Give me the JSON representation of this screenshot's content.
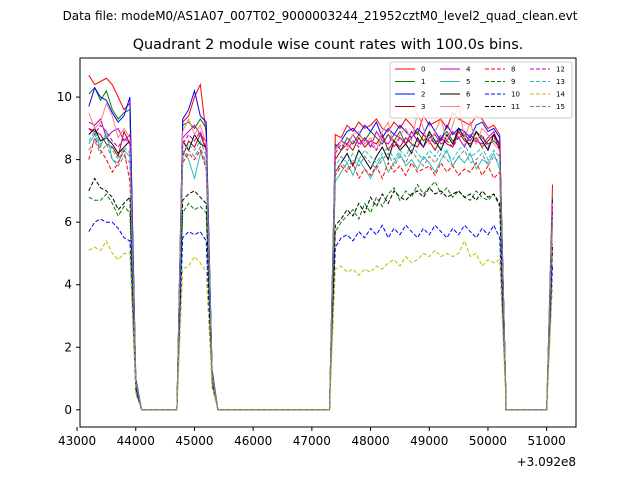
{
  "figure": {
    "suptitle": "Data file: modeM0/AS1A07_007T02_9000003244_21952cztM0_level2_quad_clean.evt"
  },
  "chart_data": {
    "type": "line",
    "title": "Quadrant 2 module wise count rates with 100.0s bins.",
    "xlabel": "",
    "ylabel": "",
    "x_offset_label": "+3.092e8",
    "xlim": [
      43050,
      51500
    ],
    "ylim": [
      -0.55,
      11.25
    ],
    "xticks": [
      43000,
      44000,
      45000,
      46000,
      47000,
      48000,
      49000,
      50000,
      51000
    ],
    "yticks": [
      0,
      2,
      4,
      6,
      8,
      10
    ],
    "grid": false,
    "legend_position": "top-right",
    "legend_columns": 4,
    "series_style": {
      "colors": [
        "#ff0000",
        "#008000",
        "#0000ff",
        "#c00000",
        "#bf00bf",
        "#2abfbf",
        "#000000",
        "#ff8080",
        "#ff0000",
        "#008000",
        "#0000ff",
        "#000000",
        "#bf00bf",
        "#2abfbf",
        "#bfbf00",
        "#808080"
      ],
      "dash": [
        "solid",
        "solid",
        "solid",
        "solid",
        "solid",
        "solid",
        "solid",
        "solid",
        "dashed",
        "dashed",
        "dashed",
        "dashed",
        "dashed",
        "dashed",
        "dashed",
        "dashed"
      ]
    },
    "segments": [
      {
        "x0": 43200,
        "n": 10
      },
      {
        "x0": 44700,
        "n": 8
      },
      {
        "x0": 47300,
        "n": 31
      },
      {
        "x0": 50300,
        "n": 9
      }
    ],
    "series": [
      {
        "name": "0",
        "values": [
          10.7,
          10.4,
          10.5,
          10.6,
          10.4,
          10.0,
          9.6,
          9.8,
          0.9,
          0.0,
          0.0,
          9.2,
          9.4,
          10.0,
          10.4,
          8.8,
          1.3,
          0.0,
          0.0,
          8.8,
          8.7,
          9.1,
          8.9,
          9.2,
          9.0,
          9.1,
          9.3,
          9.0,
          8.9,
          9.2,
          9.0,
          9.3,
          9.1,
          8.8,
          9.4,
          9.1,
          9.2,
          9.3,
          9.0,
          9.5,
          9.3,
          9.2,
          9.1,
          9.4,
          9.3,
          9.0,
          9.1,
          8.8,
          0.8,
          0.0,
          0.0,
          0.0,
          0.0,
          0.0,
          0.0,
          0.0,
          0.0,
          7.2
        ]
      },
      {
        "name": "1",
        "values": [
          10.1,
          10.3,
          9.9,
          10.2,
          9.6,
          9.3,
          9.5,
          9.6,
          1.0,
          0.0,
          0.0,
          9.1,
          9.2,
          9.0,
          9.3,
          9.0,
          1.2,
          0.0,
          0.0,
          8.5,
          8.3,
          8.7,
          8.5,
          8.8,
          8.6,
          8.9,
          8.7,
          8.5,
          8.8,
          8.6,
          8.9,
          8.5,
          8.7,
          8.9,
          8.6,
          8.8,
          8.5,
          8.7,
          8.9,
          8.6,
          8.7,
          8.8,
          8.6,
          8.9,
          8.7,
          8.5,
          8.6,
          8.4,
          0.9,
          0.0,
          0.0,
          0.0,
          0.0,
          0.0,
          0.0,
          0.0,
          0.0,
          6.8
        ]
      },
      {
        "name": "2",
        "values": [
          9.7,
          10.3,
          10.0,
          9.9,
          9.5,
          9.2,
          9.4,
          10.0,
          1.0,
          0.0,
          0.0,
          9.3,
          9.6,
          10.2,
          9.4,
          9.2,
          1.2,
          0.0,
          0.0,
          8.3,
          8.6,
          8.9,
          9.0,
          8.8,
          9.1,
          8.9,
          9.2,
          8.7,
          9.0,
          8.8,
          9.1,
          8.9,
          8.7,
          9.0,
          8.8,
          9.2,
          8.9,
          8.6,
          9.1,
          8.8,
          9.0,
          8.9,
          8.7,
          9.1,
          9.2,
          8.9,
          9.0,
          8.7,
          0.8,
          0.0,
          0.0,
          0.0,
          0.0,
          0.0,
          0.0,
          0.0,
          0.0,
          6.7
        ]
      },
      {
        "name": "3",
        "values": [
          9.0,
          8.9,
          8.8,
          8.5,
          8.4,
          8.1,
          8.9,
          8.5,
          0.9,
          0.0,
          0.0,
          8.1,
          8.6,
          8.4,
          8.8,
          8.3,
          1.1,
          0.0,
          0.0,
          8.0,
          8.3,
          8.5,
          8.3,
          8.7,
          8.4,
          8.6,
          8.5,
          8.8,
          8.3,
          8.6,
          8.4,
          8.7,
          8.5,
          8.4,
          8.8,
          8.6,
          8.3,
          8.7,
          8.5,
          8.4,
          8.9,
          8.6,
          8.5,
          8.7,
          8.4,
          8.6,
          8.8,
          8.3,
          0.8,
          0.0,
          0.0,
          0.0,
          0.0,
          0.0,
          0.0,
          0.0,
          0.0,
          6.5
        ]
      },
      {
        "name": "4",
        "values": [
          9.2,
          9.1,
          9.3,
          8.7,
          8.9,
          9.0,
          8.6,
          8.8,
          0.9,
          0.0,
          0.0,
          8.7,
          8.9,
          9.1,
          8.8,
          8.6,
          1.1,
          0.0,
          0.0,
          8.4,
          8.6,
          8.5,
          8.8,
          8.5,
          8.7,
          8.4,
          8.9,
          8.6,
          8.5,
          8.8,
          8.7,
          8.5,
          8.9,
          8.6,
          8.4,
          8.7,
          8.8,
          8.5,
          8.6,
          8.9,
          8.7,
          8.4,
          8.8,
          8.6,
          8.5,
          8.7,
          8.9,
          8.4,
          0.8,
          0.0,
          0.0,
          0.0,
          0.0,
          0.0,
          0.0,
          0.0,
          0.0,
          6.6
        ]
      },
      {
        "name": "5",
        "values": [
          8.5,
          8.8,
          8.4,
          8.9,
          8.0,
          7.9,
          8.3,
          8.1,
          0.9,
          0.0,
          0.0,
          8.3,
          8.0,
          7.4,
          8.2,
          7.9,
          1.1,
          0.0,
          0.0,
          7.3,
          7.6,
          7.9,
          7.5,
          8.0,
          7.7,
          7.4,
          7.8,
          8.1,
          7.6,
          7.9,
          8.2,
          7.8,
          8.0,
          7.7,
          8.1,
          7.9,
          7.6,
          8.0,
          8.3,
          7.8,
          8.1,
          7.9,
          8.2,
          7.7,
          8.0,
          7.9,
          8.2,
          7.7,
          0.8,
          0.0,
          0.0,
          0.0,
          0.0,
          0.0,
          0.0,
          0.0,
          0.0,
          6.2
        ]
      },
      {
        "name": "6",
        "values": [
          8.8,
          9.0,
          8.6,
          8.7,
          8.5,
          8.2,
          8.4,
          8.6,
          0.9,
          0.0,
          0.0,
          8.6,
          8.3,
          8.8,
          8.5,
          8.4,
          1.1,
          0.0,
          0.0,
          7.6,
          7.9,
          8.2,
          7.8,
          8.3,
          8.0,
          7.7,
          8.1,
          8.4,
          8.0,
          8.6,
          8.3,
          8.5,
          8.2,
          8.7,
          8.4,
          8.9,
          8.6,
          8.3,
          8.8,
          8.5,
          9.0,
          8.7,
          8.4,
          8.9,
          8.6,
          8.3,
          8.8,
          8.5,
          0.8,
          0.0,
          0.0,
          0.0,
          0.0,
          0.0,
          0.0,
          0.0,
          0.0,
          6.4
        ]
      },
      {
        "name": "7",
        "values": [
          9.5,
          9.0,
          9.2,
          9.8,
          9.4,
          8.7,
          9.0,
          8.7,
          0.9,
          0.0,
          0.0,
          8.9,
          9.3,
          8.8,
          9.1,
          8.5,
          1.1,
          0.0,
          0.0,
          8.3,
          8.6,
          8.4,
          8.8,
          8.9,
          8.5,
          8.7,
          8.3,
          8.9,
          9.2,
          8.4,
          8.8,
          9.0,
          8.6,
          9.5,
          9.0,
          8.5,
          8.9,
          9.3,
          8.6,
          9.1,
          9.8,
          8.7,
          9.2,
          8.5,
          9.0,
          8.8,
          8.5,
          8.3,
          0.8,
          0.0,
          0.0,
          0.0,
          0.0,
          0.0,
          0.0,
          0.0,
          0.0,
          6.6
        ]
      },
      {
        "name": "8",
        "values": [
          8.0,
          8.7,
          8.3,
          8.0,
          7.6,
          7.9,
          8.3,
          7.3,
          0.8,
          0.0,
          0.0,
          7.9,
          8.2,
          8.0,
          8.3,
          7.7,
          1.0,
          0.0,
          0.0,
          7.5,
          7.8,
          7.6,
          7.9,
          7.4,
          7.7,
          7.5,
          7.8,
          7.4,
          7.9,
          7.6,
          7.8,
          7.5,
          7.9,
          7.6,
          7.7,
          7.8,
          7.5,
          7.9,
          7.6,
          7.8,
          7.5,
          7.7,
          7.6,
          7.9,
          7.5,
          7.8,
          7.4,
          7.6,
          0.8,
          0.0,
          0.0,
          0.0,
          0.0,
          0.0,
          0.0,
          0.0,
          0.0,
          6.0
        ]
      },
      {
        "name": "9",
        "values": [
          6.8,
          6.7,
          6.7,
          6.9,
          6.6,
          6.2,
          6.5,
          6.3,
          0.7,
          0.0,
          0.0,
          6.3,
          6.6,
          6.4,
          6.5,
          6.3,
          0.9,
          0.0,
          0.0,
          5.7,
          6.0,
          6.2,
          6.4,
          6.1,
          6.6,
          6.3,
          6.8,
          6.5,
          6.9,
          7.1,
          6.7,
          7.0,
          6.8,
          7.2,
          6.9,
          7.1,
          7.3,
          6.9,
          7.1,
          6.8,
          7.0,
          6.8,
          6.7,
          7.0,
          6.8,
          6.7,
          6.9,
          6.5,
          0.7,
          0.0,
          0.0,
          0.0,
          0.0,
          0.0,
          0.0,
          0.0,
          0.0,
          5.2
        ]
      },
      {
        "name": "10",
        "values": [
          5.7,
          6.0,
          6.1,
          6.0,
          6.0,
          5.8,
          5.5,
          5.4,
          0.6,
          0.0,
          0.0,
          5.5,
          5.7,
          5.6,
          5.7,
          5.4,
          0.8,
          0.0,
          0.0,
          5.2,
          5.5,
          5.6,
          5.4,
          5.7,
          5.5,
          5.8,
          5.6,
          5.9,
          5.5,
          5.8,
          5.6,
          5.9,
          5.7,
          5.5,
          5.8,
          5.6,
          5.9,
          5.7,
          5.5,
          5.8,
          5.6,
          5.9,
          5.7,
          5.5,
          5.8,
          5.6,
          5.9,
          5.5,
          0.6,
          0.0,
          0.0,
          0.0,
          0.0,
          0.0,
          0.0,
          0.0,
          0.0,
          4.6
        ]
      },
      {
        "name": "11",
        "values": [
          7.0,
          7.4,
          7.1,
          7.0,
          6.8,
          6.4,
          6.6,
          6.8,
          0.7,
          0.0,
          0.0,
          6.7,
          6.9,
          7.0,
          6.8,
          6.6,
          0.9,
          0.0,
          0.0,
          5.9,
          6.1,
          6.4,
          6.2,
          6.6,
          6.3,
          6.8,
          6.5,
          6.9,
          6.6,
          7.0,
          6.8,
          6.7,
          6.9,
          7.0,
          6.8,
          7.1,
          6.9,
          7.0,
          6.8,
          6.9,
          7.0,
          6.8,
          6.9,
          6.7,
          7.0,
          6.8,
          6.9,
          6.6,
          0.7,
          0.0,
          0.0,
          0.0,
          0.0,
          0.0,
          0.0,
          0.0,
          0.0,
          5.3
        ]
      },
      {
        "name": "12",
        "values": [
          9.0,
          8.8,
          9.1,
          8.9,
          8.6,
          8.4,
          8.7,
          8.5,
          0.9,
          0.0,
          0.0,
          8.5,
          8.8,
          8.6,
          8.9,
          8.4,
          1.1,
          0.0,
          0.0,
          8.2,
          8.5,
          8.3,
          8.6,
          8.4,
          8.7,
          8.5,
          8.3,
          8.6,
          8.8,
          8.4,
          8.7,
          8.5,
          8.9,
          8.6,
          8.4,
          8.7,
          8.5,
          8.8,
          8.6,
          8.4,
          8.7,
          8.9,
          8.5,
          8.6,
          8.8,
          8.4,
          8.7,
          8.5,
          0.8,
          0.0,
          0.0,
          0.0,
          0.0,
          0.0,
          0.0,
          0.0,
          0.0,
          6.5
        ]
      },
      {
        "name": "13",
        "values": [
          8.6,
          8.9,
          8.5,
          8.7,
          8.3,
          8.0,
          8.4,
          8.2,
          0.9,
          0.0,
          0.0,
          8.2,
          8.5,
          8.3,
          8.6,
          8.1,
          1.1,
          0.0,
          0.0,
          7.8,
          8.1,
          7.9,
          8.2,
          8.0,
          8.3,
          8.1,
          7.9,
          8.2,
          8.4,
          8.0,
          8.3,
          8.1,
          8.5,
          8.2,
          8.0,
          8.3,
          8.1,
          8.4,
          8.2,
          8.0,
          8.3,
          8.5,
          8.1,
          8.2,
          8.4,
          8.0,
          8.3,
          8.1,
          0.8,
          0.0,
          0.0,
          0.0,
          0.0,
          0.0,
          0.0,
          0.0,
          0.0,
          6.2
        ]
      },
      {
        "name": "14",
        "values": [
          5.1,
          5.2,
          5.1,
          5.4,
          5.0,
          4.8,
          5.0,
          5.0,
          0.5,
          0.0,
          0.0,
          4.5,
          4.6,
          4.9,
          4.7,
          4.4,
          0.7,
          0.0,
          0.0,
          4.5,
          4.6,
          4.4,
          4.5,
          4.3,
          4.5,
          4.4,
          4.6,
          4.5,
          4.7,
          4.8,
          4.6,
          4.9,
          4.7,
          4.8,
          5.0,
          4.9,
          5.1,
          4.9,
          5.0,
          4.9,
          5.0,
          5.4,
          4.9,
          5.0,
          4.6,
          4.8,
          4.7,
          4.8,
          0.5,
          0.0,
          0.0,
          0.0,
          0.0,
          0.0,
          0.0,
          0.0,
          0.0,
          4.0
        ]
      },
      {
        "name": "15",
        "values": [
          8.3,
          8.6,
          8.2,
          8.5,
          8.0,
          7.8,
          8.1,
          7.9,
          0.9,
          0.0,
          0.0,
          8.0,
          8.3,
          8.1,
          8.4,
          7.9,
          1.0,
          0.0,
          0.0,
          7.6,
          7.9,
          7.7,
          8.0,
          7.8,
          8.1,
          7.9,
          7.7,
          8.0,
          8.2,
          7.8,
          8.1,
          7.9,
          8.3,
          8.0,
          7.8,
          8.1,
          7.9,
          8.2,
          8.0,
          7.8,
          8.1,
          8.3,
          7.9,
          8.0,
          8.2,
          7.8,
          8.1,
          7.9,
          0.8,
          0.0,
          0.0,
          0.0,
          0.0,
          0.0,
          0.0,
          0.0,
          0.0,
          6.0
        ]
      }
    ]
  }
}
